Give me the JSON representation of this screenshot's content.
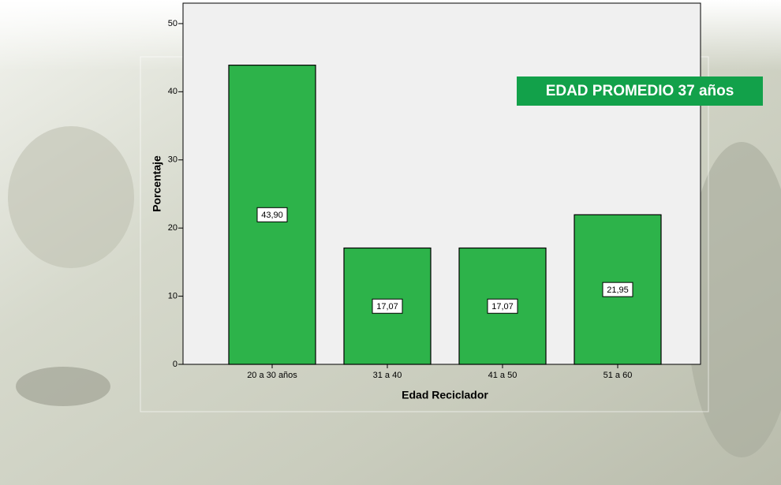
{
  "chart_data": {
    "type": "bar",
    "x_label": "Edad Reciclador",
    "y_label": "Porcentaje",
    "categories": [
      "20 a 30 años",
      "31 a 40",
      "41 a 50",
      "51 a 60"
    ],
    "values": [
      43.9,
      17.07,
      17.07,
      21.95
    ],
    "value_labels": [
      "43,90",
      "17,07",
      "17,07",
      "21,95"
    ],
    "color": "#2db34a",
    "ylim": [
      0,
      53
    ],
    "yticks": [
      0,
      10,
      20,
      30,
      40,
      50
    ],
    "annotation": "EDAD PROMEDIO  37 años"
  }
}
